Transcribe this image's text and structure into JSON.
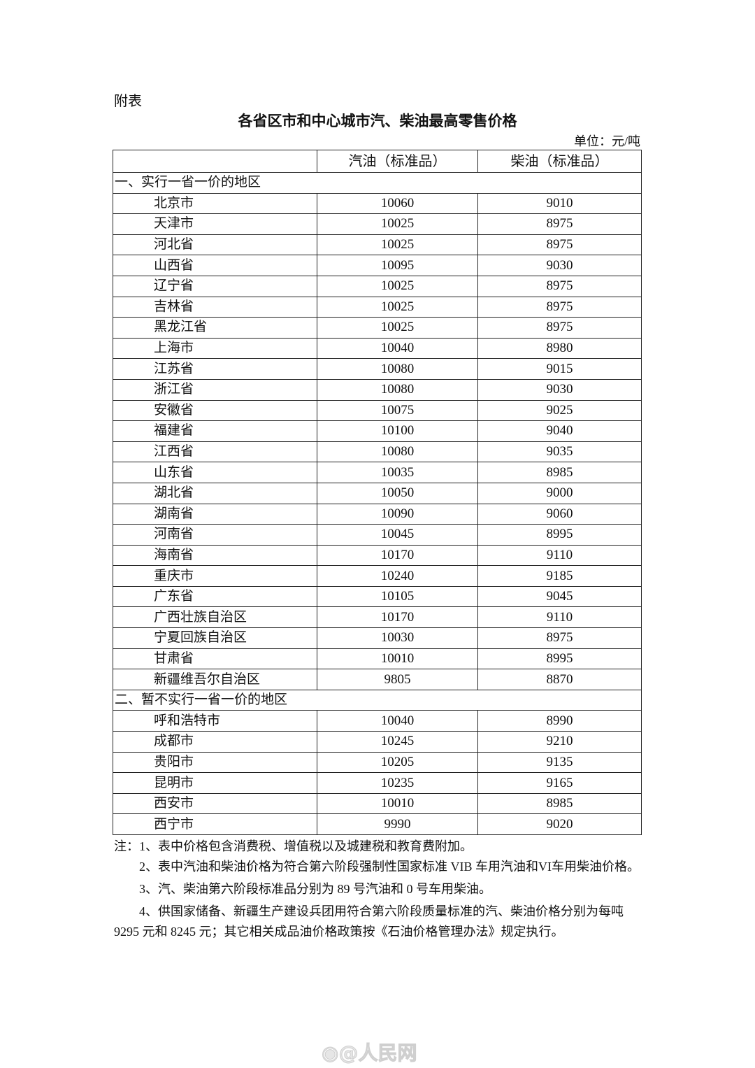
{
  "doc": {
    "label": "附表",
    "title": "各省区市和中心城市汽、柴油最高零售价格",
    "unit": "单位：元/吨"
  },
  "table": {
    "headers": [
      "",
      "汽油（标准品）",
      "柴油（标准品）"
    ],
    "sections": [
      {
        "title": "一、实行一省一价的地区",
        "rows": [
          [
            "北京市",
            "10060",
            "9010"
          ],
          [
            "天津市",
            "10025",
            "8975"
          ],
          [
            "河北省",
            "10025",
            "8975"
          ],
          [
            "山西省",
            "10095",
            "9030"
          ],
          [
            "辽宁省",
            "10025",
            "8975"
          ],
          [
            "吉林省",
            "10025",
            "8975"
          ],
          [
            "黑龙江省",
            "10025",
            "8975"
          ],
          [
            "上海市",
            "10040",
            "8980"
          ],
          [
            "江苏省",
            "10080",
            "9015"
          ],
          [
            "浙江省",
            "10080",
            "9030"
          ],
          [
            "安徽省",
            "10075",
            "9025"
          ],
          [
            "福建省",
            "10100",
            "9040"
          ],
          [
            "江西省",
            "10080",
            "9035"
          ],
          [
            "山东省",
            "10035",
            "8985"
          ],
          [
            "湖北省",
            "10050",
            "9000"
          ],
          [
            "湖南省",
            "10090",
            "9060"
          ],
          [
            "河南省",
            "10045",
            "8995"
          ],
          [
            "海南省",
            "10170",
            "9110"
          ],
          [
            "重庆市",
            "10240",
            "9185"
          ],
          [
            "广东省",
            "10105",
            "9045"
          ],
          [
            "广西壮族自治区",
            "10170",
            "9110"
          ],
          [
            "宁夏回族自治区",
            "10030",
            "8975"
          ],
          [
            "甘肃省",
            "10010",
            "8995"
          ],
          [
            "新疆维吾尔自治区",
            "9805",
            "8870"
          ]
        ]
      },
      {
        "title": "二、暂不实行一省一价的地区",
        "rows": [
          [
            "呼和浩特市",
            "10040",
            "8990"
          ],
          [
            "成都市",
            "10245",
            "9210"
          ],
          [
            "贵阳市",
            "10205",
            "9135"
          ],
          [
            "昆明市",
            "10235",
            "9165"
          ],
          [
            "西安市",
            "10010",
            "8985"
          ],
          [
            "西宁市",
            "9990",
            "9020"
          ]
        ]
      }
    ]
  },
  "notes": [
    "注：1、表中价格包含消费税、增值税以及城建税和教育费附加。",
    "2、表中汽油和柴油价格为符合第六阶段强制性国家标准 VIB 车用汽油和VI车用柴油价格。",
    "3、汽、柴油第六阶段标准品分别为 89 号汽油和 0 号车用柴油。",
    "4、供国家储备、新疆生产建设兵团用符合第六阶段质量标准的汽、柴油价格分别为每吨 9295 元和 8245 元；其它相关成品油价格政策按《石油价格管理办法》规定执行。"
  ],
  "watermark": "@人民网"
}
